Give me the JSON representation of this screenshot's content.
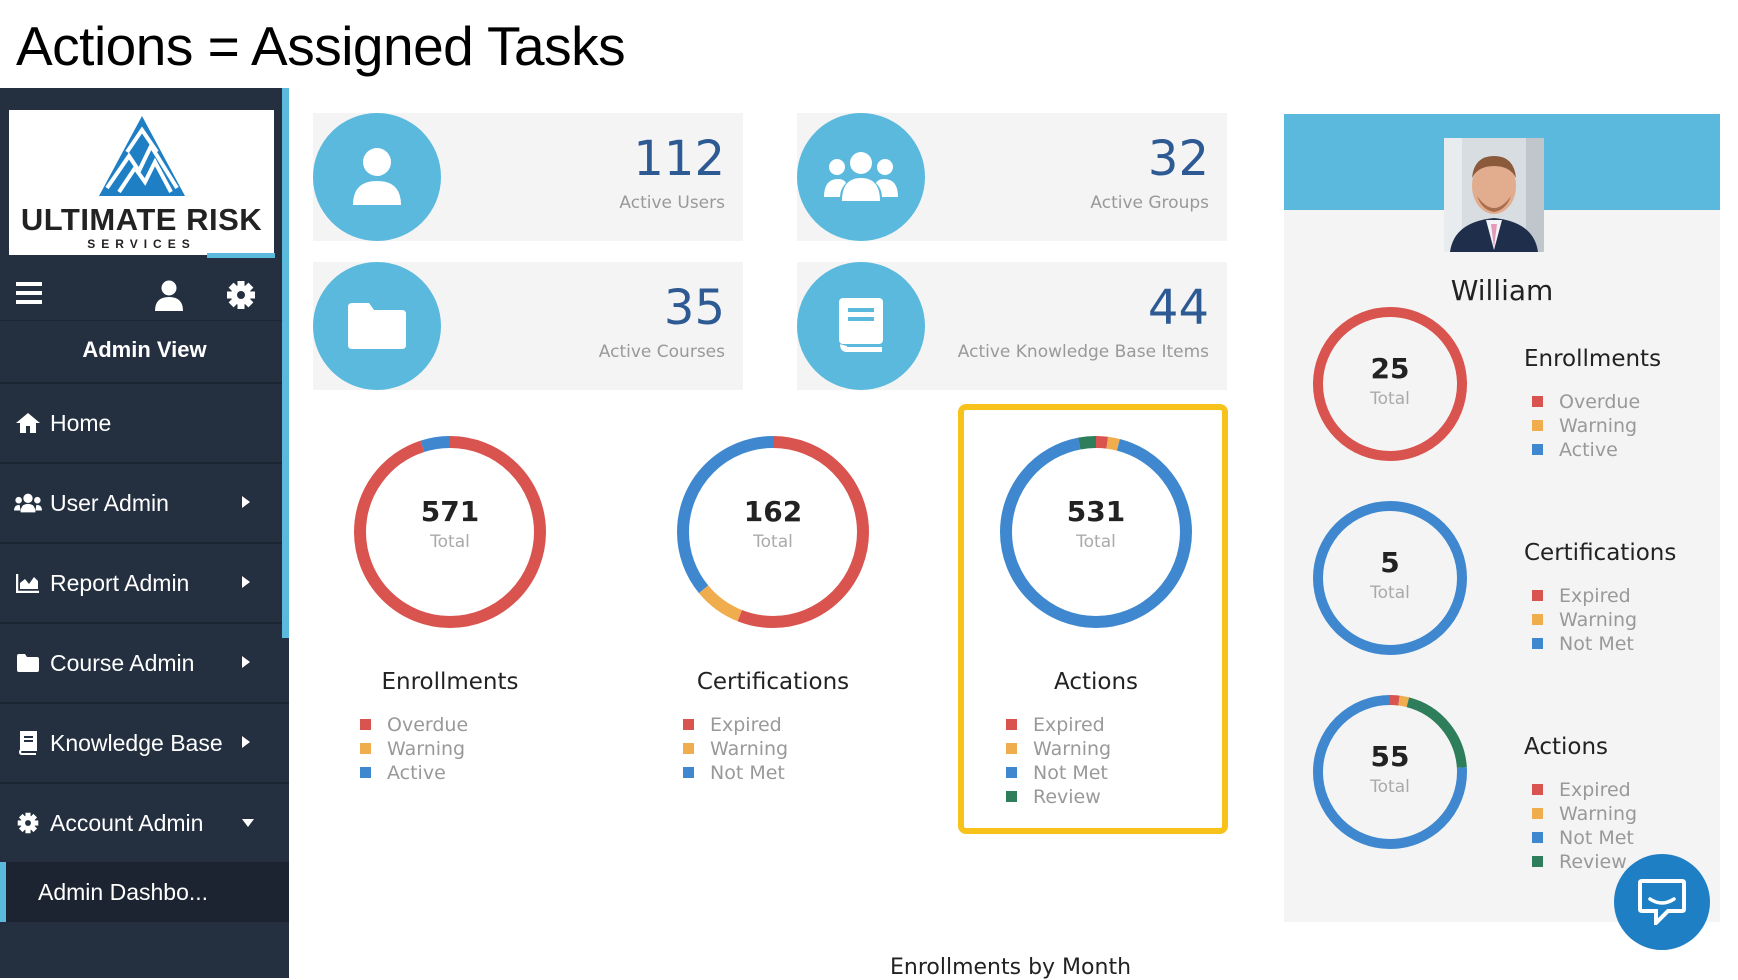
{
  "slide_title": "Actions = Assigned Tasks",
  "colors": {
    "accent": "#5ab9dd",
    "sidebar": "#243040",
    "red": "#d9534f",
    "orange": "#f0ad4e",
    "blue": "#3f88cf",
    "green": "#2e7d5b",
    "highlight": "#f7c31a",
    "stat_value": "#2e5a94"
  },
  "logo": {
    "name": "ULTIMATE RISK",
    "sub": "SERVICES"
  },
  "sidebar": {
    "toolbar": {
      "menu_icon": "hamburger-icon",
      "user_icon": "user-icon",
      "settings_icon": "gear-icon"
    },
    "view_label": "Admin View",
    "items": [
      {
        "label": "Home",
        "icon": "home-icon"
      },
      {
        "label": "User Admin",
        "icon": "users-icon"
      },
      {
        "label": "Report Admin",
        "icon": "chart-icon"
      },
      {
        "label": "Course Admin",
        "icon": "folder-icon"
      },
      {
        "label": "Knowledge Base",
        "icon": "book-icon"
      },
      {
        "label": "Account Admin",
        "icon": "gear-icon"
      }
    ],
    "sub_item": "Admin Dashbo..."
  },
  "stats": [
    {
      "value": "112",
      "label": "Active Users",
      "icon": "user-icon"
    },
    {
      "value": "32",
      "label": "Active Groups",
      "icon": "group-icon"
    },
    {
      "value": "35",
      "label": "Active Courses",
      "icon": "folder-icon"
    },
    {
      "value": "44",
      "label": "Active Knowledge Base Items",
      "icon": "book-icon"
    }
  ],
  "donuts": [
    {
      "title": "Enrollments",
      "total": "571",
      "total_label": "Total",
      "legend": [
        "Overdue",
        "Warning",
        "Active"
      ],
      "segments": [
        {
          "label": "Overdue",
          "fraction": 0.95,
          "color": "#d9534f"
        },
        {
          "label": "Warning",
          "fraction": 0.0,
          "color": "#f0ad4e"
        },
        {
          "label": "Active",
          "fraction": 0.05,
          "color": "#3f88cf"
        }
      ]
    },
    {
      "title": "Certifications",
      "total": "162",
      "total_label": "Total",
      "legend": [
        "Expired",
        "Warning",
        "Not Met"
      ],
      "segments": [
        {
          "label": "Expired",
          "fraction": 0.56,
          "color": "#d9534f"
        },
        {
          "label": "Warning",
          "fraction": 0.08,
          "color": "#f0ad4e"
        },
        {
          "label": "Not Met",
          "fraction": 0.36,
          "color": "#3f88cf"
        }
      ]
    },
    {
      "title": "Actions",
      "total": "531",
      "total_label": "Total",
      "legend": [
        "Expired",
        "Warning",
        "Not Met",
        "Review"
      ],
      "segments": [
        {
          "label": "Expired",
          "fraction": 0.02,
          "color": "#d9534f"
        },
        {
          "label": "Warning",
          "fraction": 0.02,
          "color": "#f0ad4e"
        },
        {
          "label": "Not Met",
          "fraction": 0.93,
          "color": "#3f88cf"
        },
        {
          "label": "Review",
          "fraction": 0.03,
          "color": "#2e7d5b"
        }
      ]
    }
  ],
  "profile": {
    "name": "William",
    "donuts": [
      {
        "title": "Enrollments",
        "total": "25",
        "total_label": "Total",
        "legend": [
          "Overdue",
          "Warning",
          "Active"
        ],
        "segments": [
          {
            "label": "Overdue",
            "fraction": 1.0,
            "color": "#d9534f"
          }
        ]
      },
      {
        "title": "Certifications",
        "total": "5",
        "total_label": "Total",
        "legend": [
          "Expired",
          "Warning",
          "Not Met"
        ],
        "segments": [
          {
            "label": "Not Met",
            "fraction": 1.0,
            "color": "#3f88cf"
          }
        ]
      },
      {
        "title": "Actions",
        "total": "55",
        "total_label": "Total",
        "legend": [
          "Expired",
          "Warning",
          "Not Met",
          "Review"
        ],
        "segments": [
          {
            "label": "Expired",
            "fraction": 0.02,
            "color": "#d9534f"
          },
          {
            "label": "Warning",
            "fraction": 0.02,
            "color": "#f0ad4e"
          },
          {
            "label": "Review",
            "fraction": 0.2,
            "color": "#2e7d5b"
          },
          {
            "label": "Not Met",
            "fraction": 0.76,
            "color": "#3f88cf"
          }
        ]
      }
    ]
  },
  "legend_colors": {
    "Overdue": "#d9534f",
    "Expired": "#d9534f",
    "Warning": "#f0ad4e",
    "Active": "#3f88cf",
    "Not Met": "#3f88cf",
    "Review": "#2e7d5b"
  },
  "chat_icon": "chat-icon",
  "bottom_section_title": "Enrollments by Month"
}
